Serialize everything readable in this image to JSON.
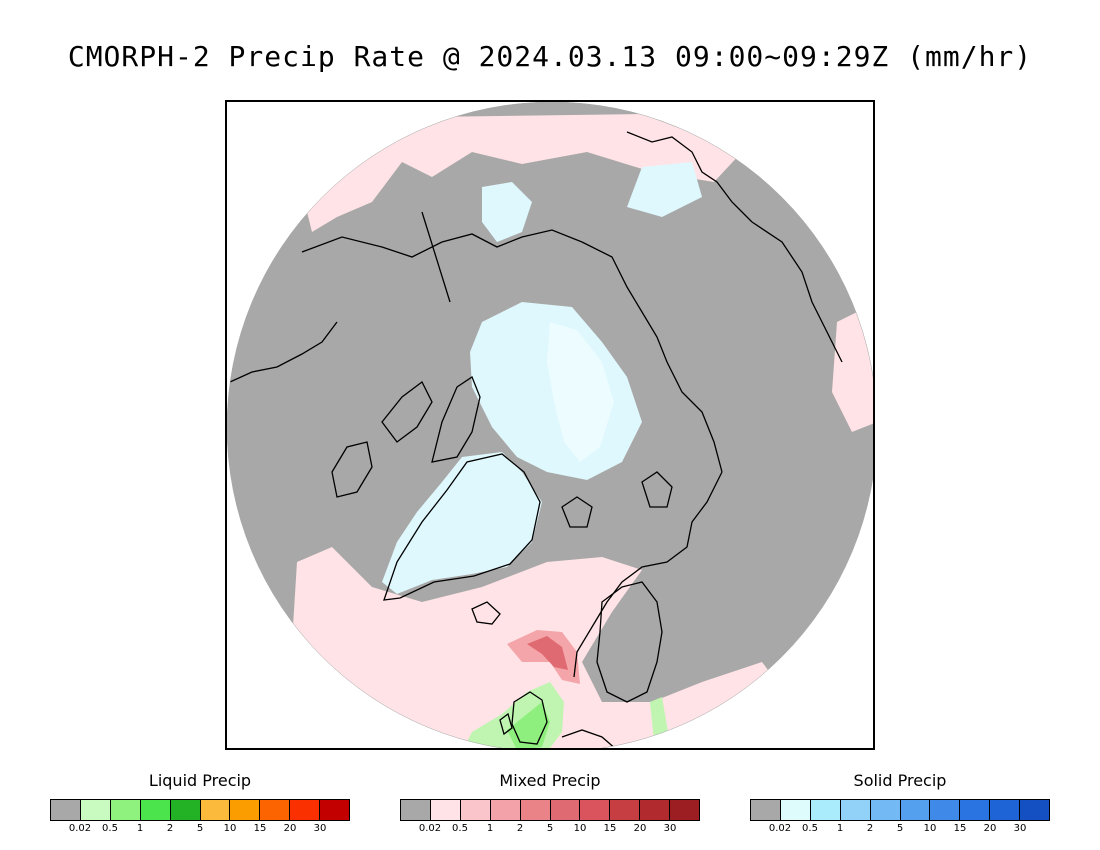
{
  "title": "CMORPH-2 Precip Rate @ 2024.03.13 09:00~09:29Z (mm/hr)",
  "map": {
    "projection": "north polar stereographic",
    "colors": {
      "no_precip": "#a8a8a8",
      "light_mixed": "#ffe3e6",
      "light_solid": "#dff8fd",
      "mixed_band": "#f3a5aa",
      "mixed_core": "#e06a72",
      "liquid_light": "#bff5b0",
      "liquid_med": "#8fef7e",
      "coastline": "#000000"
    },
    "features": [
      "arctic-ocean-solid-precip",
      "greenland-ice",
      "north-atlantic-mixed-precip",
      "norwegian-sea-mixed-core",
      "british-isles-liquid-precip"
    ]
  },
  "legends": [
    {
      "title": "Liquid Precip",
      "ticks": [
        "0.02",
        "0.5",
        "1",
        "2",
        "5",
        "10",
        "15",
        "20",
        "30"
      ],
      "colors": [
        "#a8a8a8",
        "#c9fbc0",
        "#8ff27f",
        "#4be44c",
        "#23b126",
        "#fcba3c",
        "#fb9c00",
        "#fb6400",
        "#fb3000",
        "#c30000"
      ]
    },
    {
      "title": "Mixed Precip",
      "ticks": [
        "0.02",
        "0.5",
        "1",
        "2",
        "5",
        "10",
        "15",
        "20",
        "30"
      ],
      "colors": [
        "#a8a8a8",
        "#ffe3e6",
        "#fbc6cb",
        "#f2a2a8",
        "#ea8388",
        "#e06a72",
        "#d9545c",
        "#c73e42",
        "#b12a2e",
        "#9c1e22"
      ]
    },
    {
      "title": "Solid Precip",
      "ticks": [
        "0.02",
        "0.5",
        "1",
        "2",
        "5",
        "10",
        "15",
        "20",
        "30"
      ],
      "colors": [
        "#a8a8a8",
        "#dffcfd",
        "#aaecfb",
        "#92d2f9",
        "#73b9f4",
        "#55a0ee",
        "#3f8ae8",
        "#2a74e2",
        "#1f64d6",
        "#1550c2"
      ]
    }
  ]
}
